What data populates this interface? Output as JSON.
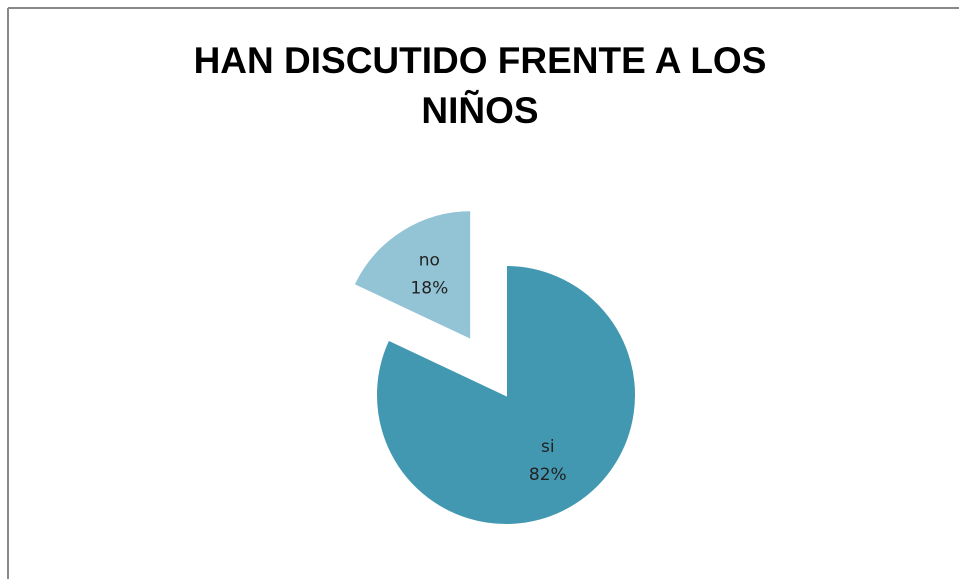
{
  "chart_data": {
    "type": "pie",
    "title": "HAN DISCUTIDO FRENTE A LOS NIÑOS",
    "categories": [
      "si",
      "no"
    ],
    "values": [
      82,
      18
    ],
    "value_labels": [
      "82%",
      "18%"
    ],
    "colors": [
      "#4398b1",
      "#93c4d6"
    ]
  }
}
